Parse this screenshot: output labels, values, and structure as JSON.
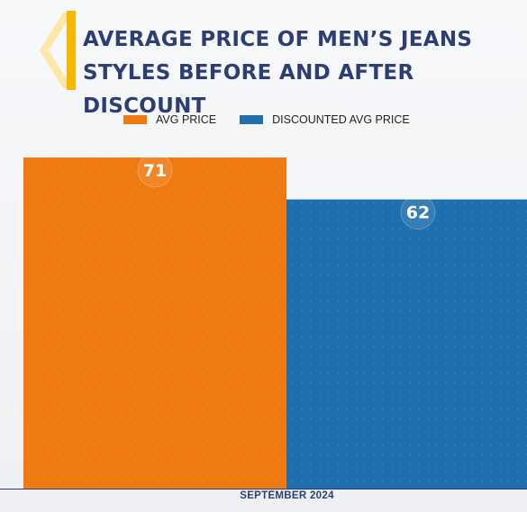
{
  "title": "AVERAGE PRICE OF MEN’S JEANS STYLES BEFORE AND AFTER DISCOUNT",
  "chart_data": {
    "type": "bar",
    "title": "AVERAGE PRICE OF MEN’S JEANS STYLES BEFORE AND AFTER DISCOUNT",
    "categories": [
      "SEPTEMBER 2024"
    ],
    "series": [
      {
        "name": "AVG PRICE",
        "values": [
          71
        ],
        "color": "#f07a12"
      },
      {
        "name": "DISCOUNTED AVG PRICE",
        "values": [
          62
        ],
        "color": "#1f6fae"
      }
    ],
    "ylim": [
      0,
      71
    ],
    "legend_position": "top",
    "grid": false,
    "data_labels": true
  },
  "colors": {
    "title": "#2c3e73",
    "logo_accent": "#f5b700"
  }
}
